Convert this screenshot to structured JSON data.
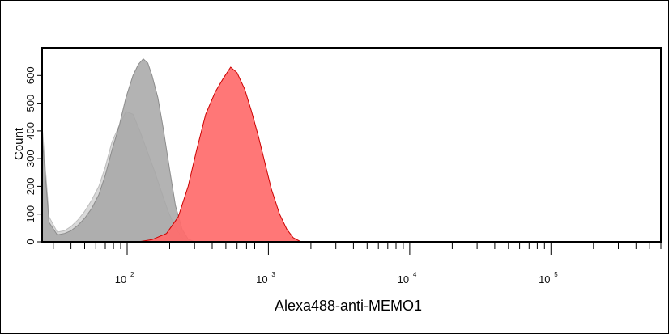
{
  "chart_data": {
    "type": "area",
    "title": "",
    "xlabel": "Alexa488-anti-MEMO1",
    "ylabel": "Count",
    "x_scale": "log",
    "xlim": [
      25,
      600000
    ],
    "ylim": [
      0,
      700
    ],
    "x_tick_labels": [
      {
        "value": 100,
        "base": "10",
        "exp": "2"
      },
      {
        "value": 1000,
        "base": "10",
        "exp": "3"
      },
      {
        "value": 10000,
        "base": "10",
        "exp": "4"
      },
      {
        "value": 100000,
        "base": "10",
        "exp": "5"
      }
    ],
    "y_tick_labels": [
      "0",
      "100",
      "200",
      "300",
      "400",
      "500",
      "600"
    ],
    "grid": false,
    "legend": "none",
    "series": [
      {
        "fill": "#d2d2d2",
        "stroke": "#bdbdbd",
        "x": [
          25,
          28,
          32,
          36,
          40,
          45,
          50,
          56,
          63,
          70,
          78,
          88,
          98,
          110,
          123,
          138,
          155,
          175,
          195,
          220,
          245,
          270
        ],
        "y": [
          420,
          90,
          35,
          40,
          55,
          80,
          110,
          150,
          200,
          270,
          360,
          420,
          470,
          460,
          400,
          330,
          260,
          180,
          110,
          50,
          15,
          0
        ]
      },
      {
        "fill": "#a6a6a6",
        "stroke": "#8c8c8c",
        "x": [
          25,
          28,
          32,
          36,
          40,
          45,
          50,
          56,
          63,
          70,
          78,
          88,
          98,
          110,
          120,
          130,
          140,
          150,
          165,
          180,
          200,
          220,
          245,
          270,
          300
        ],
        "y": [
          380,
          70,
          25,
          30,
          40,
          60,
          85,
          120,
          170,
          240,
          330,
          420,
          520,
          600,
          640,
          660,
          645,
          600,
          520,
          410,
          260,
          130,
          45,
          10,
          0
        ]
      },
      {
        "fill": "#ff6b6b",
        "stroke": "#cc0000",
        "x": [
          120,
          150,
          190,
          230,
          270,
          310,
          360,
          420,
          480,
          540,
          600,
          680,
          760,
          850,
          950,
          1050,
          1200,
          1350,
          1500,
          1700
        ],
        "y": [
          0,
          8,
          30,
          90,
          200,
          330,
          460,
          540,
          590,
          630,
          610,
          550,
          470,
          380,
          280,
          190,
          100,
          45,
          15,
          0
        ]
      }
    ]
  }
}
